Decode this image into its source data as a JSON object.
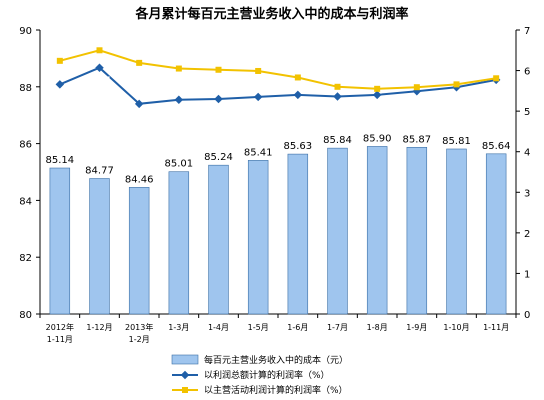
{
  "chart_data": {
    "type": "bar",
    "title": "各月累计每百元主营业务收入中的成本与利润率",
    "categories": [
      [
        "2012年",
        "1-11月"
      ],
      [
        "1-12月"
      ],
      [
        "2013年",
        "1-2月"
      ],
      [
        "1-3月"
      ],
      [
        "1-4月"
      ],
      [
        "1-5月"
      ],
      [
        "1-6月"
      ],
      [
        "1-7月"
      ],
      [
        "1-8月"
      ],
      [
        "1-9月"
      ],
      [
        "1-10月"
      ],
      [
        "1-11月"
      ]
    ],
    "left_axis": {
      "ylim": [
        80,
        90
      ],
      "ticks": [
        "80",
        "82",
        "84",
        "86",
        "88",
        "90"
      ]
    },
    "right_axis": {
      "ylim": [
        0,
        7
      ],
      "ticks": [
        "0",
        "1",
        "2",
        "3",
        "4",
        "5",
        "6",
        "7"
      ]
    },
    "series": [
      {
        "name": "每百元主营业务收入中的成本（元）",
        "type": "bar",
        "axis": "left",
        "color": "#9fc5ee",
        "values": [
          85.14,
          84.77,
          84.46,
          85.01,
          85.24,
          85.41,
          85.63,
          85.84,
          85.9,
          85.87,
          85.81,
          85.64
        ],
        "labels": [
          "85.14",
          "84.77",
          "84.46",
          "85.01",
          "85.24",
          "85.41",
          "85.63",
          "85.84",
          "85.90",
          "85.87",
          "85.81",
          "85.64"
        ]
      },
      {
        "name": "以利润总额计算的利润率（%）",
        "type": "line",
        "axis": "right",
        "color": "#1f5fa8",
        "values": [
          5.66,
          6.07,
          5.18,
          5.28,
          5.3,
          5.35,
          5.4,
          5.36,
          5.4,
          5.49,
          5.59,
          5.77
        ],
        "labels": [
          "5.66",
          "6.07",
          "5.18",
          "5.28",
          "5.30",
          "5.35",
          "5.40",
          "5.36",
          "5.40",
          "5.49",
          "5.59",
          "5.77"
        ]
      },
      {
        "name": "以主营活动利润计算的利润率（%）",
        "type": "line",
        "axis": "right",
        "color": "#f2c200",
        "values": [
          6.24,
          6.5,
          6.19,
          6.05,
          6.02,
          5.99,
          5.83,
          5.6,
          5.55,
          5.59,
          5.66,
          5.81
        ],
        "labels": [
          "6.24",
          "6.50",
          "6.19",
          "6.05",
          "6.02",
          "5.99",
          "5.83",
          "5.60",
          "5.55",
          "5.59",
          "5.66",
          "5.81"
        ]
      }
    ],
    "grid": false,
    "legend_position": "bottom"
  }
}
